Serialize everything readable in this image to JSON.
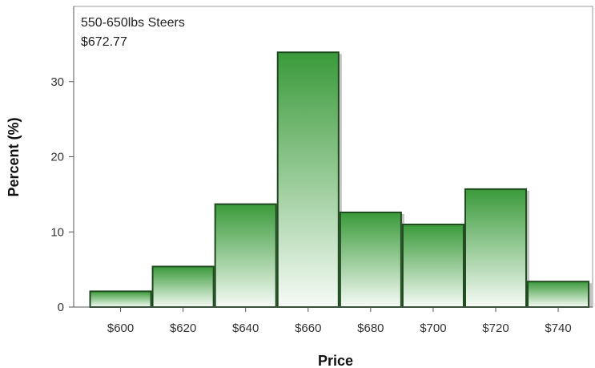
{
  "chart_data": {
    "type": "bar",
    "subtype": "histogram",
    "inset_lines": [
      "550-650lbs Steers",
      "$672.77"
    ],
    "xlabel": "Price",
    "ylabel": "Percent (%)",
    "bins": [
      {
        "from": 590,
        "to": 610,
        "value": 2.2
      },
      {
        "from": 610,
        "to": 630,
        "value": 5.5
      },
      {
        "from": 630,
        "to": 650,
        "value": 13.8
      },
      {
        "from": 650,
        "to": 670,
        "value": 34.0
      },
      {
        "from": 670,
        "to": 690,
        "value": 12.7
      },
      {
        "from": 690,
        "to": 710,
        "value": 11.1
      },
      {
        "from": 710,
        "to": 730,
        "value": 15.8
      },
      {
        "from": 730,
        "to": 750,
        "value": 3.5
      }
    ],
    "xticks": [
      {
        "value": 600,
        "label": "$600"
      },
      {
        "value": 620,
        "label": "$620"
      },
      {
        "value": 640,
        "label": "$640"
      },
      {
        "value": 660,
        "label": "$660"
      },
      {
        "value": 680,
        "label": "$680"
      },
      {
        "value": 700,
        "label": "$700"
      },
      {
        "value": 720,
        "label": "$720"
      },
      {
        "value": 740,
        "label": "$740"
      }
    ],
    "yticks": [
      0,
      10,
      20,
      30
    ],
    "xlim": [
      585,
      751
    ],
    "ylim": [
      0,
      40
    ],
    "grid": false,
    "bar_color_top": "#3a9a3a",
    "bar_color_bottom": "#f6fbf6",
    "bar_outline": "#1f4a1f"
  }
}
